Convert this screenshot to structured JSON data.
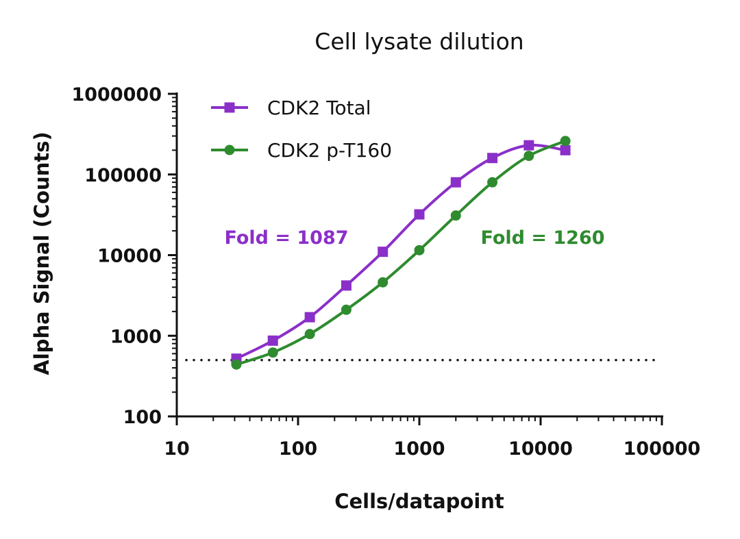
{
  "chart_data": {
    "type": "scatter",
    "title": "Cell lysate dilution",
    "xlabel": "Cells/datapoint",
    "ylabel": "Alpha Signal (Counts)",
    "xscale": "log",
    "yscale": "log",
    "xlim": [
      10,
      100000
    ],
    "ylim": [
      100,
      1000000
    ],
    "x_ticks": [
      "10",
      "100",
      "1000",
      "10000",
      "100000"
    ],
    "y_ticks": [
      "100",
      "1000",
      "10000",
      "100000",
      "1000000"
    ],
    "grid": false,
    "legend_position": "top-left",
    "reference_line": {
      "y": 500,
      "style": "dotted"
    },
    "series": [
      {
        "name": "CDK2 Total",
        "marker": "square",
        "color": "#8B2FC9",
        "x": [
          31,
          62,
          125,
          250,
          500,
          1000,
          2000,
          4000,
          8000,
          16000
        ],
        "y": [
          520,
          870,
          1700,
          4200,
          11000,
          32000,
          80000,
          160000,
          230000,
          200000
        ]
      },
      {
        "name": "CDK2 p-T160",
        "marker": "circle",
        "color": "#2E8B2E",
        "x": [
          31,
          62,
          125,
          250,
          500,
          1000,
          2000,
          4000,
          8000,
          16000
        ],
        "y": [
          440,
          620,
          1050,
          2100,
          4600,
          11500,
          31000,
          80000,
          170000,
          260000
        ]
      }
    ],
    "annotations": [
      {
        "text": "Fold = 1087",
        "color": "#8B2FC9"
      },
      {
        "text": "Fold = 1260",
        "color": "#2E8B2E"
      }
    ]
  }
}
